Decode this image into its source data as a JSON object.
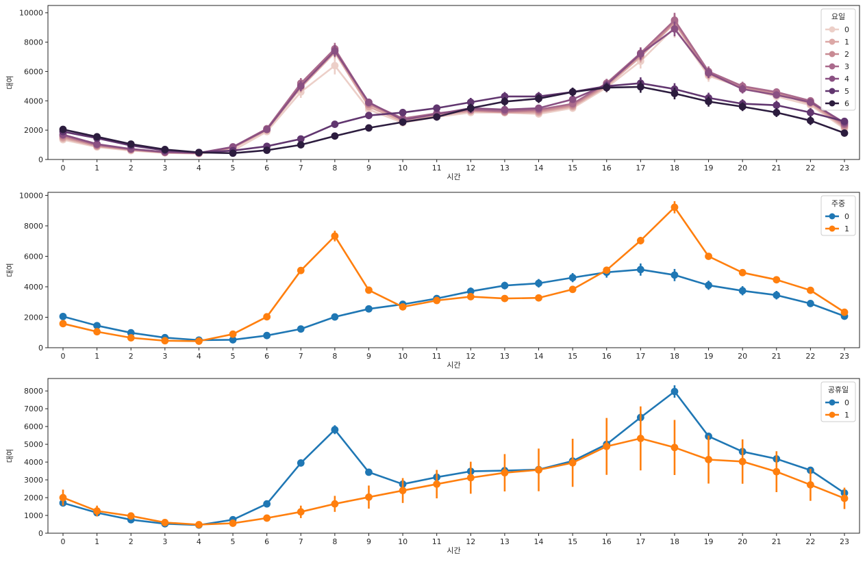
{
  "chart_data": [
    {
      "type": "line",
      "xlabel": "시간",
      "ylabel": "대여",
      "ylim": [
        0,
        10500
      ],
      "yticks": [
        0,
        2000,
        4000,
        6000,
        8000,
        10000
      ],
      "categories": [
        "0",
        "1",
        "2",
        "3",
        "4",
        "5",
        "6",
        "7",
        "8",
        "9",
        "10",
        "11",
        "12",
        "13",
        "14",
        "15",
        "16",
        "17",
        "18",
        "19",
        "20",
        "21",
        "22",
        "23"
      ],
      "legend": {
        "title": "요일",
        "position": "top-right"
      },
      "series": [
        {
          "name": "0",
          "color": "#eccfc8",
          "values": [
            1350,
            850,
            600,
            450,
            400,
            600,
            1900,
            4600,
            6400,
            3400,
            2500,
            2900,
            3200,
            3200,
            3100,
            3500,
            4900,
            6700,
            9000,
            5700,
            4900,
            4300,
            3700,
            2100
          ],
          "err": [
            200,
            120,
            100,
            80,
            80,
            100,
            200,
            400,
            600,
            300,
            200,
            200,
            200,
            200,
            200,
            250,
            350,
            500,
            700,
            400,
            350,
            300,
            300,
            200
          ]
        },
        {
          "name": "1",
          "color": "#dca8a6",
          "values": [
            1450,
            900,
            650,
            470,
            420,
            780,
            2000,
            4900,
            7300,
            3600,
            2600,
            3000,
            3300,
            3200,
            3200,
            3600,
            5000,
            7000,
            9300,
            5800,
            4900,
            4500,
            3800,
            2200
          ],
          "err": [
            150,
            100,
            80,
            60,
            60,
            80,
            150,
            350,
            400,
            250,
            200,
            200,
            200,
            200,
            200,
            200,
            300,
            400,
            500,
            350,
            300,
            250,
            250,
            150
          ]
        },
        {
          "name": "2",
          "color": "#c88a93",
          "values": [
            1550,
            950,
            680,
            480,
            430,
            820,
            2050,
            5100,
            7450,
            3750,
            2700,
            3100,
            3350,
            3250,
            3300,
            3700,
            5100,
            7100,
            9400,
            5900,
            4950,
            4550,
            3900,
            2300
          ],
          "err": [
            150,
            100,
            80,
            60,
            60,
            80,
            150,
            350,
            400,
            250,
            200,
            200,
            200,
            200,
            200,
            200,
            300,
            400,
            500,
            350,
            300,
            250,
            250,
            150
          ]
        },
        {
          "name": "3",
          "color": "#aa6a8c",
          "values": [
            1650,
            1000,
            700,
            500,
            440,
            850,
            2100,
            5200,
            7550,
            3850,
            2800,
            3150,
            3400,
            3300,
            3400,
            3800,
            5200,
            7250,
            9500,
            6000,
            5000,
            4600,
            4000,
            2400
          ],
          "err": [
            150,
            100,
            80,
            60,
            60,
            80,
            150,
            350,
            400,
            250,
            200,
            200,
            200,
            200,
            200,
            200,
            300,
            400,
            500,
            350,
            300,
            250,
            250,
            150
          ]
        },
        {
          "name": "4",
          "color": "#8a5082",
          "values": [
            1700,
            1050,
            720,
            510,
            450,
            860,
            2050,
            5000,
            7400,
            3900,
            2700,
            3100,
            3500,
            3400,
            3500,
            4100,
            5100,
            7200,
            8900,
            5900,
            4800,
            4400,
            3900,
            2500
          ],
          "err": [
            150,
            100,
            80,
            60,
            60,
            80,
            150,
            350,
            400,
            250,
            200,
            200,
            200,
            200,
            200,
            200,
            300,
            400,
            500,
            350,
            300,
            250,
            250,
            150
          ]
        },
        {
          "name": "5",
          "color": "#61366f",
          "values": [
            1900,
            1450,
            950,
            620,
            480,
            600,
            900,
            1400,
            2400,
            3000,
            3200,
            3500,
            3900,
            4300,
            4300,
            4600,
            5000,
            5200,
            4800,
            4200,
            3800,
            3700,
            3200,
            2600
          ],
          "err": [
            200,
            150,
            100,
            80,
            60,
            60,
            100,
            150,
            200,
            250,
            250,
            250,
            300,
            300,
            300,
            300,
            300,
            400,
            400,
            350,
            300,
            300,
            300,
            200
          ]
        },
        {
          "name": "6",
          "color": "#2c1c3e",
          "values": [
            2050,
            1550,
            1050,
            680,
            480,
            430,
            630,
            1000,
            1600,
            2150,
            2550,
            2900,
            3500,
            3950,
            4150,
            4600,
            4900,
            4950,
            4500,
            3950,
            3600,
            3200,
            2650,
            1800
          ],
          "err": [
            200,
            150,
            100,
            80,
            60,
            60,
            80,
            120,
            150,
            200,
            250,
            250,
            300,
            300,
            300,
            300,
            300,
            400,
            400,
            350,
            300,
            300,
            300,
            200
          ]
        }
      ]
    },
    {
      "type": "line",
      "xlabel": "시간",
      "ylabel": "대여",
      "ylim": [
        0,
        10200
      ],
      "yticks": [
        0,
        2000,
        4000,
        6000,
        8000,
        10000
      ],
      "categories": [
        "0",
        "1",
        "2",
        "3",
        "4",
        "5",
        "6",
        "7",
        "8",
        "9",
        "10",
        "11",
        "12",
        "13",
        "14",
        "15",
        "16",
        "17",
        "18",
        "19",
        "20",
        "21",
        "22",
        "23"
      ],
      "legend": {
        "title": "주중",
        "position": "top-right"
      },
      "series": [
        {
          "name": "0",
          "color": "#1f77b4",
          "values": [
            2050,
            1450,
            980,
            660,
            500,
            520,
            800,
            1230,
            2020,
            2550,
            2850,
            3230,
            3700,
            4080,
            4230,
            4600,
            4950,
            5130,
            4770,
            4100,
            3740,
            3450,
            2900,
            2070
          ],
          "err": [
            100,
            90,
            70,
            50,
            40,
            40,
            60,
            90,
            100,
            120,
            140,
            150,
            250,
            250,
            280,
            300,
            350,
            400,
            400,
            300,
            300,
            280,
            220,
            120
          ]
        },
        {
          "name": "1",
          "color": "#ff7f0e",
          "values": [
            1580,
            1050,
            650,
            460,
            430,
            890,
            2030,
            5070,
            7330,
            3780,
            2680,
            3100,
            3350,
            3230,
            3270,
            3830,
            5090,
            7030,
            9220,
            6000,
            4930,
            4460,
            3770,
            2330
          ],
          "err": [
            100,
            80,
            60,
            40,
            30,
            60,
            100,
            200,
            350,
            150,
            120,
            120,
            130,
            120,
            130,
            150,
            200,
            250,
            400,
            200,
            150,
            140,
            130,
            120
          ]
        }
      ]
    },
    {
      "type": "line",
      "xlabel": "시간",
      "ylabel": "대여",
      "ylim": [
        0,
        8700
      ],
      "yticks": [
        0,
        1000,
        2000,
        3000,
        4000,
        5000,
        6000,
        7000,
        8000
      ],
      "categories": [
        "0",
        "1",
        "2",
        "3",
        "4",
        "5",
        "6",
        "7",
        "8",
        "9",
        "10",
        "11",
        "12",
        "13",
        "14",
        "15",
        "16",
        "17",
        "18",
        "19",
        "20",
        "21",
        "22",
        "23"
      ],
      "legend": {
        "title": "공휴일",
        "position": "top-right"
      },
      "series": [
        {
          "name": "0",
          "color": "#1f77b4",
          "values": [
            1700,
            1150,
            760,
            530,
            460,
            760,
            1650,
            3950,
            5820,
            3430,
            2760,
            3150,
            3480,
            3520,
            3580,
            4060,
            5000,
            6510,
            7970,
            5450,
            4590,
            4180,
            3540,
            2260
          ],
          "err": [
            80,
            70,
            50,
            40,
            30,
            50,
            80,
            200,
            250,
            100,
            80,
            100,
            100,
            100,
            100,
            120,
            150,
            250,
            350,
            200,
            150,
            130,
            120,
            100
          ]
        },
        {
          "name": "1",
          "color": "#ff7f0e",
          "values": [
            2000,
            1250,
            970,
            600,
            480,
            560,
            850,
            1200,
            1650,
            2030,
            2400,
            2760,
            3120,
            3400,
            3560,
            3960,
            4880,
            5330,
            4820,
            4140,
            4030,
            3460,
            2720,
            1960
          ],
          "err": [
            450,
            300,
            200,
            120,
            80,
            80,
            180,
            350,
            450,
            650,
            700,
            800,
            900,
            1050,
            1200,
            1350,
            1600,
            1800,
            1550,
            1350,
            1250,
            1150,
            900,
            600
          ]
        }
      ]
    }
  ]
}
